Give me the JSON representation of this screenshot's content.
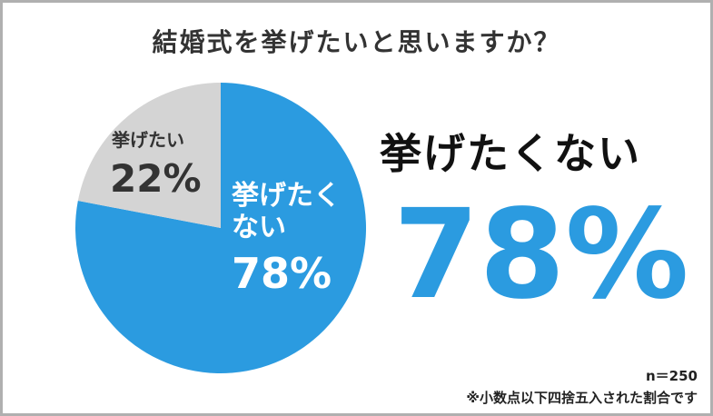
{
  "chart_data": {
    "type": "pie",
    "title": "結婚式を挙げたいと思いますか？",
    "categories": [
      "挙げたくない",
      "挙げたい"
    ],
    "values": [
      78,
      22
    ],
    "value_labels": [
      "78%",
      "22%"
    ],
    "colors": [
      "#2b9be0",
      "#d4d4d4"
    ],
    "annotations": [
      "n＝250",
      "※小数点以下四捨五入された割合です"
    ]
  }
}
